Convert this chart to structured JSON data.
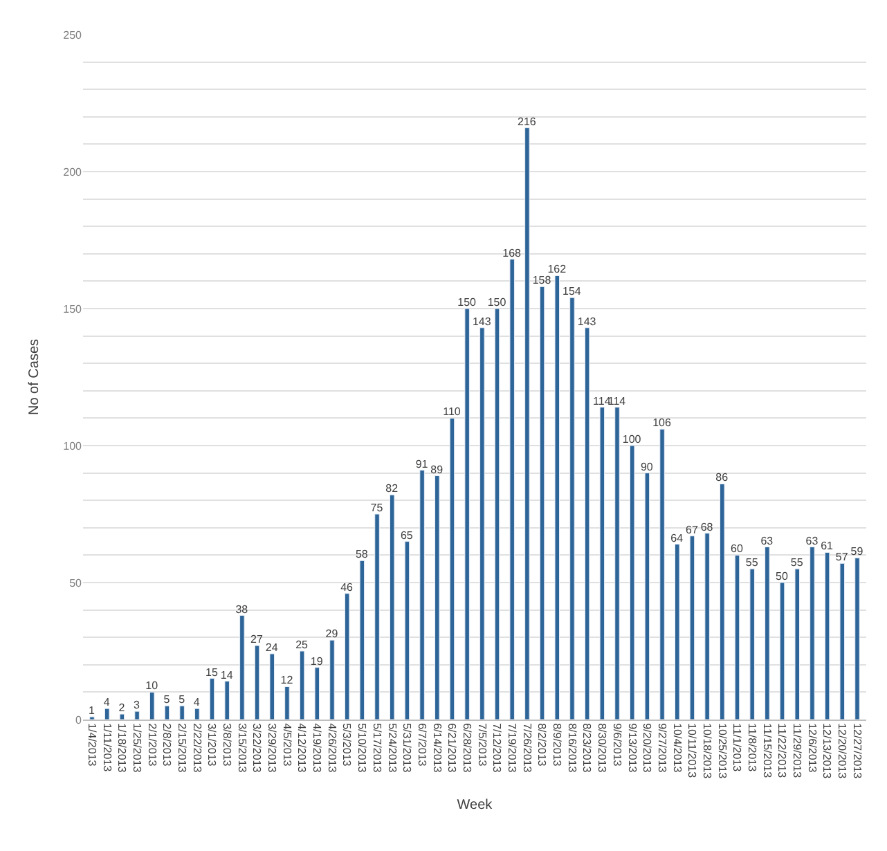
{
  "chart_data": {
    "type": "bar",
    "xlabel": "Week",
    "ylabel": "No of Cases",
    "categories": [
      "1/4/2013",
      "1/11/2013",
      "1/18/2013",
      "1/25/2013",
      "2/1/2013",
      "2/8/2013",
      "2/15/2013",
      "2/22/2013",
      "3/1/2013",
      "3/8/2013",
      "3/15/2013",
      "3/22/2013",
      "3/29/2013",
      "4/5/2013",
      "4/12/2013",
      "4/19/2013",
      "4/26/2013",
      "5/3/2013",
      "5/10/2013",
      "5/17/2013",
      "5/24/2013",
      "5/31/2013",
      "6/7/2013",
      "6/14/2013",
      "6/21/2013",
      "6/28/2013",
      "7/5/2013",
      "7/12/2013",
      "7/19/2013",
      "7/26/2013",
      "8/2/2013",
      "8/9/2013",
      "8/16/2013",
      "8/23/2013",
      "8/30/2013",
      "9/6/2013",
      "9/13/2013",
      "9/20/2013",
      "9/27/2013",
      "10/4/2013",
      "10/11/2013",
      "10/18/2013",
      "10/25/2013",
      "11/1/2013",
      "11/8/2013",
      "11/15/2013",
      "11/22/2013",
      "11/29/2013",
      "12/6/2013",
      "12/13/2013",
      "12/20/2013",
      "12/27/2013"
    ],
    "values": [
      1,
      4,
      2,
      3,
      10,
      5,
      5,
      4,
      15,
      14,
      38,
      27,
      24,
      12,
      25,
      19,
      29,
      46,
      58,
      75,
      82,
      65,
      91,
      89,
      110,
      150,
      143,
      150,
      168,
      216,
      158,
      162,
      154,
      143,
      114,
      114,
      100,
      90,
      106,
      64,
      67,
      68,
      86,
      60,
      55,
      63,
      50,
      55,
      63,
      61,
      57,
      59
    ],
    "color": "#2e6598",
    "data_labels": true,
    "ylim": [
      0,
      250
    ],
    "yticks": [
      0,
      {
        "value": 10,
        "label": null
      },
      {
        "value": 20,
        "label": null
      },
      {
        "value": 30,
        "label": null
      },
      {
        "value": 40,
        "label": null
      },
      50,
      {
        "value": 60,
        "label": null
      },
      {
        "value": 70,
        "label": null
      },
      {
        "value": 80,
        "label": null
      },
      {
        "value": 90,
        "label": null
      },
      100,
      {
        "value": 110,
        "label": null
      },
      {
        "value": 120,
        "label": null
      },
      {
        "value": 130,
        "label": null
      },
      {
        "value": 140,
        "label": null
      },
      150,
      {
        "value": 160,
        "label": null
      },
      {
        "value": 170,
        "label": null
      },
      {
        "value": 180,
        "label": null
      },
      {
        "value": 190,
        "label": null
      },
      200,
      {
        "value": 210,
        "label": null
      },
      {
        "value": 220,
        "label": null
      },
      {
        "value": 230,
        "label": null
      },
      {
        "value": 240,
        "label": null
      },
      250
    ],
    "grid": true
  }
}
